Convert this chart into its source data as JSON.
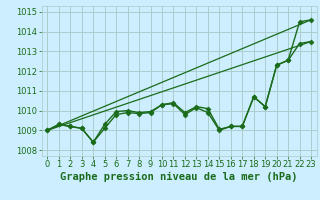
{
  "background_color": "#cceeff",
  "grid_color": "#aacccc",
  "line_color": "#1a6b1a",
  "title": "Graphe pression niveau de la mer (hPa)",
  "xlim": [
    -0.5,
    23.5
  ],
  "ylim": [
    1007.7,
    1015.3
  ],
  "yticks": [
    1008,
    1009,
    1010,
    1011,
    1012,
    1013,
    1014,
    1015
  ],
  "xticks": [
    0,
    1,
    2,
    3,
    4,
    5,
    6,
    7,
    8,
    9,
    10,
    11,
    12,
    13,
    14,
    15,
    16,
    17,
    18,
    19,
    20,
    21,
    22,
    23
  ],
  "series": [
    {
      "x": [
        0,
        1,
        2,
        3,
        4,
        5,
        6,
        7,
        8,
        9,
        10,
        11,
        12,
        13,
        14,
        15,
        16,
        17,
        18,
        19,
        20,
        21,
        22,
        23
      ],
      "y": [
        1009.0,
        1009.3,
        1009.2,
        1009.1,
        1008.4,
        1009.1,
        1009.8,
        1009.9,
        1009.85,
        1009.9,
        1010.3,
        1010.35,
        1009.8,
        1010.15,
        1009.9,
        1009.0,
        1009.2,
        1009.2,
        1010.7,
        1010.2,
        1012.3,
        1012.55,
        1014.5,
        1014.6
      ],
      "marker": "D",
      "markersize": 2.5,
      "linewidth": 1.0
    },
    {
      "x": [
        0,
        1,
        2,
        3,
        4,
        5,
        6,
        7,
        8,
        9,
        10,
        11,
        12,
        13,
        14,
        15,
        16,
        17,
        18,
        19,
        20,
        21,
        22,
        23
      ],
      "y": [
        1009.0,
        1009.3,
        1009.2,
        1009.1,
        1008.4,
        1009.3,
        1009.95,
        1010.0,
        1009.9,
        1009.95,
        1010.3,
        1010.4,
        1009.9,
        1010.2,
        1010.1,
        1009.05,
        1009.2,
        1009.2,
        1010.7,
        1010.2,
        1012.3,
        1012.55,
        1013.4,
        1013.5
      ],
      "marker": "D",
      "markersize": 2.5,
      "linewidth": 1.0
    },
    {
      "x": [
        0,
        23
      ],
      "y": [
        1009.0,
        1014.6
      ],
      "marker": null,
      "markersize": 0,
      "linewidth": 0.9
    },
    {
      "x": [
        0,
        23
      ],
      "y": [
        1009.0,
        1013.5
      ],
      "marker": null,
      "markersize": 0,
      "linewidth": 0.9
    }
  ],
  "title_fontsize": 7.5,
  "tick_fontsize": 6.0
}
